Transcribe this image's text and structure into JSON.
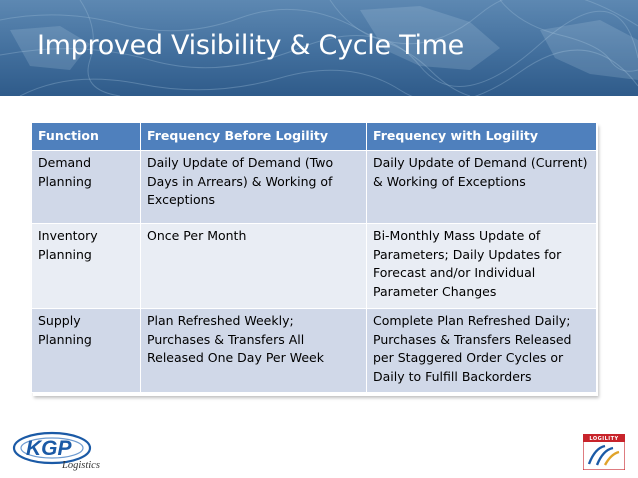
{
  "slide": {
    "title": "Improved Visibility & Cycle Time"
  },
  "table": {
    "headers": [
      "Function",
      "Frequency Before Logility",
      "Frequency with Logility"
    ],
    "rows": [
      {
        "function": "Demand Planning",
        "before": "Daily Update of Demand (Two Days in Arrears) & Working of Exceptions",
        "with": "Daily Update of Demand (Current) & Working of Exceptions"
      },
      {
        "function": "Inventory Planning",
        "before": "Once Per Month",
        "with": "Bi-Monthly Mass Update of Parameters; Daily Updates for Forecast and/or Individual Parameter Changes"
      },
      {
        "function": "Supply Planning",
        "before": "Plan Refreshed Weekly; Purchases & Transfers All Released One Day Per Week",
        "with": "Complete Plan Refreshed Daily; Purchases & Transfers Released per Staggered Order Cycles or Daily to Fulfill Backorders"
      }
    ]
  },
  "logos": {
    "left": {
      "brand": "KGP",
      "subtitle": "Logistics"
    },
    "right": {
      "brand": "LOGILITY"
    }
  },
  "colors": {
    "banner": "#426f9d",
    "header_fill": "#4f80bd",
    "row_dark": "#d0d8e8",
    "row_light": "#e9edf4",
    "kgp_blue": "#1b5aa6",
    "logility_red": "#c8242b"
  }
}
